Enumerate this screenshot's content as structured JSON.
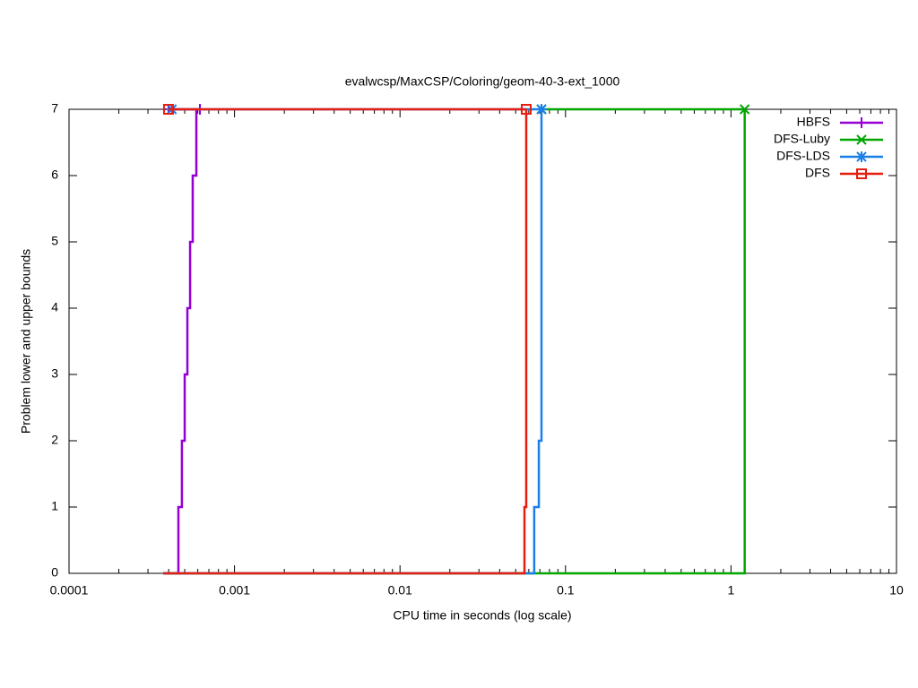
{
  "chart_data": {
    "type": "step",
    "title": "evalwcsp/MaxCSP/Coloring/geom-40-3-ext_1000",
    "x_label": "CPU time in seconds (log scale)",
    "y_label": "Problem lower and upper bounds",
    "xlim": [
      0.0001,
      10
    ],
    "xticks": [
      0.0001,
      0.001,
      0.01,
      0.1,
      1,
      10
    ],
    "xscale": "log",
    "ylim": [
      0,
      7
    ],
    "yticks": [
      0,
      1,
      2,
      3,
      4,
      5,
      6,
      7
    ],
    "legend": "top-right",
    "series": [
      {
        "name": "HBFS",
        "color": "#9400d3",
        "marker": "plus",
        "lower": {
          "x": [
            0.000371,
            0.000458,
            0.000481,
            0.0005,
            0.000519,
            0.000539,
            0.000559,
            0.000588
          ],
          "values": [
            0,
            1,
            2,
            3,
            4,
            5,
            6,
            7
          ]
        },
        "upper": {
          "x": [
            0.000399,
            0.000618
          ],
          "values": [
            7,
            7
          ]
        }
      },
      {
        "name": "DFS-Luby",
        "color": "#00a600",
        "marker": "cross",
        "lower": {
          "x": [
            0.000371,
            1.21
          ],
          "values": [
            0,
            7
          ]
        },
        "upper": {
          "x": [
            0.0716,
            1.21
          ],
          "values": [
            7,
            7
          ]
        }
      },
      {
        "name": "DFS-LDS",
        "color": "#1a7fe8",
        "marker": "star",
        "lower": {
          "x": [
            0.000371,
            0.0647,
            0.069,
            0.0716
          ],
          "values": [
            0,
            1,
            2,
            7
          ]
        },
        "upper": {
          "x": [
            0.000418,
            0.0716
          ],
          "values": [
            7,
            7
          ]
        }
      },
      {
        "name": "DFS",
        "color": "#e51e10",
        "marker": "square",
        "lower": {
          "x": [
            0.000371,
            0.0565,
            0.0579
          ],
          "values": [
            0,
            1,
            7
          ]
        },
        "upper": {
          "x": [
            0.000399,
            0.0579
          ],
          "values": [
            7,
            7
          ]
        }
      }
    ]
  }
}
